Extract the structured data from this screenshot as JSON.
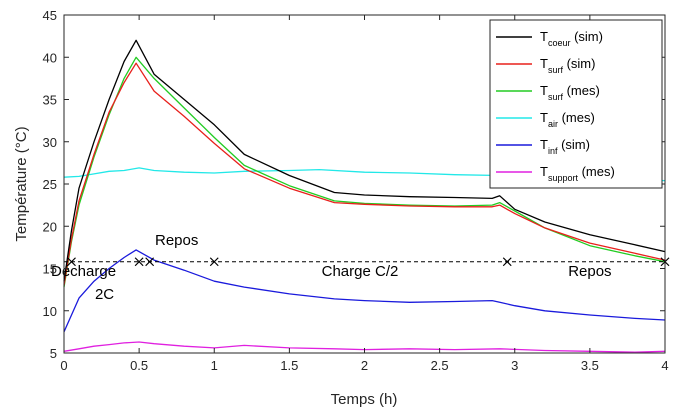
{
  "chart_data": {
    "type": "line",
    "xlabel": "Temps (h)",
    "ylabel": "Température (°C)",
    "xlim": [
      0,
      4
    ],
    "ylim": [
      5,
      45
    ],
    "xticks": [
      "0",
      "0.5",
      "1",
      "1.5",
      "2",
      "2.5",
      "3",
      "3.5",
      "4"
    ],
    "yticks": [
      "5",
      "10",
      "15",
      "20",
      "25",
      "30",
      "35",
      "40",
      "45"
    ],
    "grid": false,
    "legend_position": "top-right",
    "series": [
      {
        "name": "T coeur (sim)",
        "label_main": "T",
        "label_sub": "coeur",
        "label_tail": " (sim)",
        "color": "#000000",
        "x": [
          0,
          0.05,
          0.1,
          0.2,
          0.3,
          0.4,
          0.48,
          0.6,
          0.8,
          1.0,
          1.2,
          1.5,
          1.8,
          2.0,
          2.3,
          2.6,
          2.85,
          2.9,
          3.0,
          3.2,
          3.5,
          3.8,
          4.0
        ],
        "y": [
          13.5,
          19.5,
          24.5,
          30,
          35,
          39.5,
          42,
          38,
          35,
          32,
          28.5,
          26,
          24,
          23.7,
          23.5,
          23.4,
          23.3,
          23.6,
          22,
          20.5,
          19,
          17.8,
          17
        ]
      },
      {
        "name": "T surf (sim)",
        "label_main": "T",
        "label_sub": "surf",
        "label_tail": " (sim)",
        "color": "#e8201c",
        "x": [
          0,
          0.05,
          0.1,
          0.2,
          0.3,
          0.4,
          0.48,
          0.6,
          0.8,
          1.0,
          1.2,
          1.5,
          1.8,
          2.0,
          2.3,
          2.6,
          2.85,
          2.9,
          3.0,
          3.2,
          3.5,
          3.8,
          4.0
        ],
        "y": [
          13,
          18.5,
          23,
          28.5,
          33.5,
          37,
          39.3,
          36,
          33,
          29.8,
          26.8,
          24.5,
          22.8,
          22.6,
          22.4,
          22.3,
          22.3,
          22.5,
          21.5,
          19.8,
          18,
          16.8,
          16
        ]
      },
      {
        "name": "T surf (mes)",
        "label_main": "T",
        "label_sub": "surf",
        "label_tail": " (mes)",
        "color": "#22cc22",
        "x": [
          0,
          0.05,
          0.1,
          0.2,
          0.3,
          0.4,
          0.48,
          0.6,
          0.8,
          1.0,
          1.2,
          1.5,
          1.8,
          2.0,
          2.3,
          2.6,
          2.85,
          2.9,
          3.0,
          3.2,
          3.5,
          3.8,
          4.0
        ],
        "y": [
          12.8,
          18.2,
          22.5,
          28.2,
          33.2,
          37.5,
          40,
          37.5,
          34,
          30.5,
          27.2,
          24.8,
          23,
          22.7,
          22.5,
          22.4,
          22.5,
          22.8,
          21.8,
          19.8,
          17.7,
          16.5,
          15.8
        ]
      },
      {
        "name": "T air (mes)",
        "label_main": "T",
        "label_sub": "air",
        "label_tail": " (mes)",
        "color": "#22e8e8",
        "x": [
          0,
          0.1,
          0.2,
          0.3,
          0.4,
          0.5,
          0.6,
          0.8,
          1.0,
          1.2,
          1.5,
          1.7,
          2.0,
          2.3,
          2.6,
          2.9,
          3.2,
          3.5,
          3.8,
          4.0
        ],
        "y": [
          25.8,
          25.9,
          26.2,
          26.5,
          26.6,
          26.9,
          26.6,
          26.4,
          26.3,
          26.5,
          26.6,
          26.7,
          26.4,
          26.3,
          26.1,
          26,
          25.8,
          25.6,
          25.5,
          25.4
        ]
      },
      {
        "name": "T inf (sim)",
        "label_main": "T",
        "label_sub": "inf",
        "label_tail": " (sim)",
        "color": "#1a1adc",
        "x": [
          0,
          0.05,
          0.1,
          0.2,
          0.3,
          0.4,
          0.48,
          0.6,
          0.8,
          1.0,
          1.2,
          1.5,
          1.8,
          2.0,
          2.3,
          2.6,
          2.85,
          2.9,
          3.0,
          3.2,
          3.5,
          3.8,
          4.0
        ],
        "y": [
          7.5,
          9.5,
          11.5,
          13.5,
          15,
          16.3,
          17.2,
          16,
          14.8,
          13.5,
          12.8,
          12,
          11.4,
          11.2,
          11,
          11.1,
          11.2,
          11,
          10.6,
          10,
          9.5,
          9.1,
          8.9
        ]
      },
      {
        "name": "T support (mes)",
        "label_main": "T",
        "label_sub": "support",
        "label_tail": " (mes)",
        "color": "#e020e0",
        "x": [
          0,
          0.1,
          0.2,
          0.3,
          0.4,
          0.5,
          0.6,
          0.8,
          1.0,
          1.2,
          1.5,
          1.8,
          2.0,
          2.3,
          2.6,
          2.9,
          3.2,
          3.5,
          3.8,
          4.0
        ],
        "y": [
          5.2,
          5.5,
          5.8,
          6.0,
          6.2,
          6.3,
          6.1,
          5.8,
          5.6,
          5.9,
          5.6,
          5.5,
          5.4,
          5.5,
          5.4,
          5.5,
          5.3,
          5.2,
          5.1,
          5.2
        ]
      }
    ],
    "phase_line": {
      "y": 15.8,
      "markers_x": [
        0.05,
        0.5,
        0.57,
        1.0,
        2.95,
        4.0
      ]
    },
    "annotations": [
      {
        "text": "Décharge",
        "x": 0.13,
        "y": 14.1
      },
      {
        "text": "2C",
        "x": 0.27,
        "y": 11.4
      },
      {
        "text": "Repos",
        "x": 0.75,
        "y": 17.8
      },
      {
        "text": "Charge C/2",
        "x": 1.97,
        "y": 14.1
      },
      {
        "text": "Repos",
        "x": 3.5,
        "y": 14.1
      }
    ]
  }
}
